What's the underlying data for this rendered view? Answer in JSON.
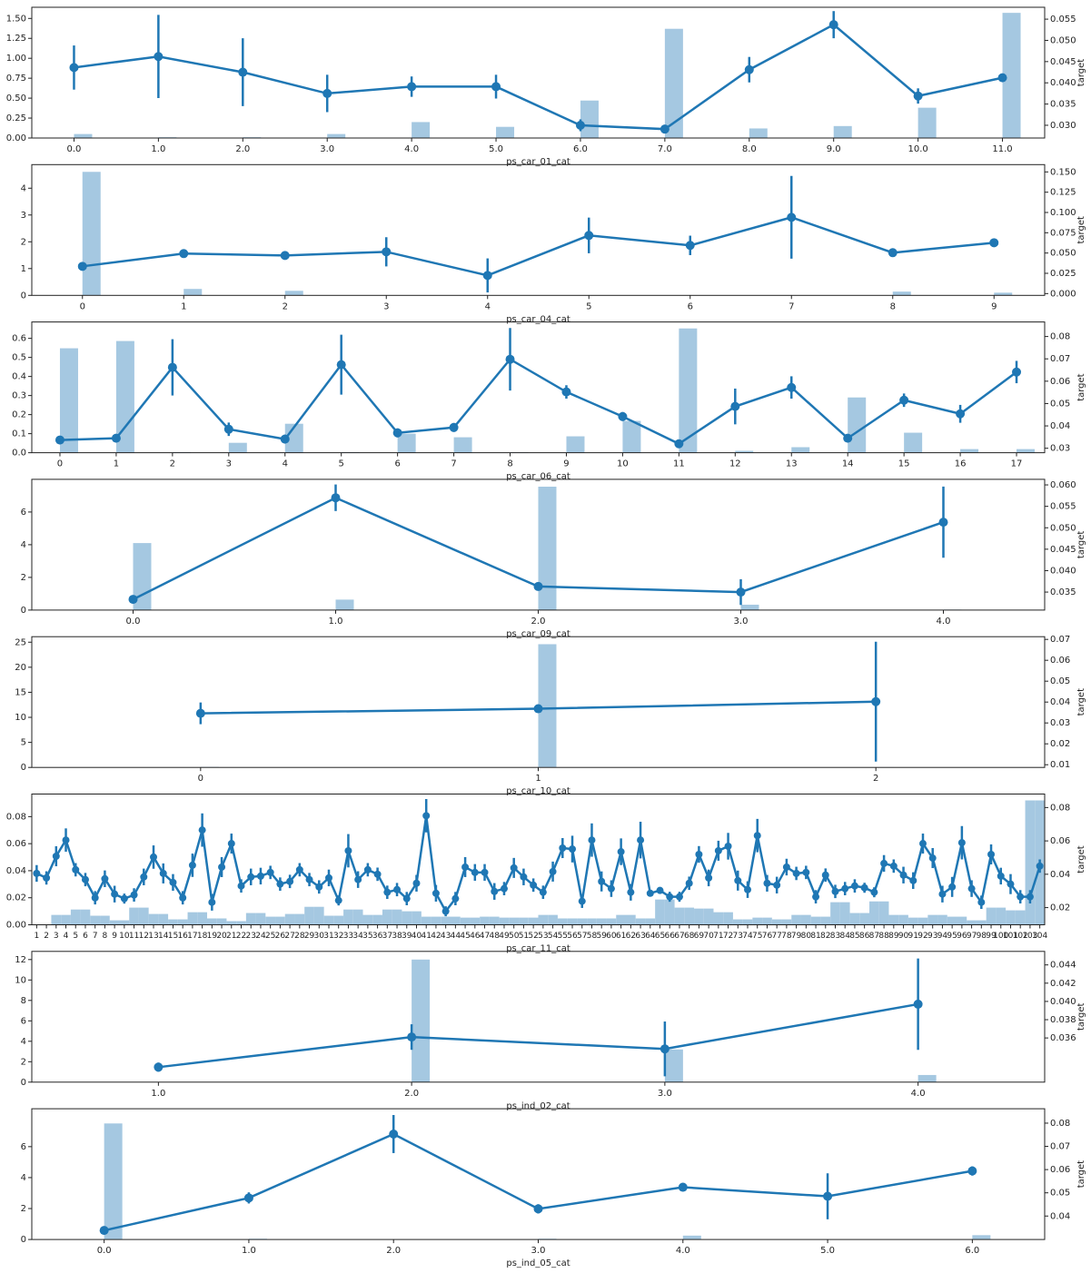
{
  "chart_data": [
    {
      "type": "combo",
      "x_label": "ps_car_01_cat",
      "y2_label": "target",
      "bar_color": "#a5c8e1",
      "point_color": "#1f77b4",
      "categories": [
        "0.0",
        "1.0",
        "2.0",
        "3.0",
        "4.0",
        "5.0",
        "6.0",
        "7.0",
        "8.0",
        "9.0",
        "10.0",
        "11.0"
      ],
      "bar_values": [
        0.05,
        0.01,
        0.01,
        0.05,
        0.2,
        0.14,
        0.47,
        1.37,
        0.12,
        0.15,
        0.38,
        1.57
      ],
      "point_values": [
        0.0436,
        0.0462,
        0.0425,
        0.0375,
        0.0391,
        0.0391,
        0.03,
        0.0291,
        0.0431,
        0.0537,
        0.0369,
        0.0412
      ],
      "point_errors": [
        0.0052,
        0.0098,
        0.008,
        0.0044,
        0.0024,
        0.0028,
        0.0014,
        0.0008,
        0.003,
        0.0032,
        0.0018,
        0.0005
      ],
      "ylim": [
        0,
        1.64
      ],
      "yticks": [
        {
          "value": 0,
          "label": "0.00"
        },
        0.25,
        {
          "value": 0.5,
          "label": "0.50"
        },
        0.75,
        {
          "value": 1,
          "label": "1.00"
        },
        1.25,
        {
          "value": 1.5,
          "label": "1.50"
        }
      ],
      "y2lim": [
        0.027,
        0.0578
      ],
      "y2ticks": [
        {
          "value": 0.03,
          "label": "0.030"
        },
        0.035,
        {
          "value": 0.04,
          "label": "0.040"
        },
        0.045,
        {
          "value": 0.05,
          "label": "0.050"
        },
        0.055
      ]
    },
    {
      "type": "combo",
      "x_label": "ps_car_04_cat",
      "y2_label": "target",
      "bar_color": "#a5c8e1",
      "point_color": "#1f77b4",
      "categories": [
        0,
        1,
        2,
        3,
        4,
        5,
        6,
        7,
        8,
        9
      ],
      "bar_values": [
        4.61,
        0.24,
        0.17,
        0,
        0,
        0,
        0,
        0,
        0.14,
        0.1
      ],
      "point_values": [
        0.0336,
        0.0493,
        0.047,
        0.0515,
        0.0224,
        0.0717,
        0.0594,
        0.094,
        0.0504,
        0.0627
      ],
      "point_errors": [
        0.002,
        0.002,
        0.002,
        0.018,
        0.021,
        0.022,
        0.012,
        0.051,
        0.002,
        0.003
      ],
      "ylim": [
        0,
        4.88
      ],
      "yticks": [
        0,
        1,
        2,
        3,
        4
      ],
      "y2lim": [
        -0.0022,
        0.159
      ],
      "y2ticks": [
        {
          "value": 0,
          "label": "0.000"
        },
        0.025,
        {
          "value": 0.05,
          "label": "0.050"
        },
        0.075,
        {
          "value": 0.1,
          "label": "0.100"
        },
        0.125,
        {
          "value": 0.15,
          "label": "0.150"
        }
      ]
    },
    {
      "type": "combo",
      "x_label": "ps_car_06_cat",
      "y2_label": "target",
      "bar_color": "#a5c8e1",
      "point_color": "#1f77b4",
      "categories": [
        0,
        1,
        2,
        3,
        4,
        5,
        6,
        7,
        8,
        9,
        10,
        11,
        12,
        13,
        14,
        15,
        16,
        17
      ],
      "bar_values": [
        0.548,
        0.586,
        0.003,
        0.052,
        0.152,
        0.003,
        0.1,
        0.081,
        0.002,
        0.086,
        0.167,
        0.652,
        0.01,
        0.029,
        0.29,
        0.105,
        0.019,
        0.019
      ],
      "point_values": [
        0.0337,
        0.0345,
        0.0662,
        0.0385,
        0.0341,
        0.0674,
        0.0369,
        0.0393,
        0.0698,
        0.0552,
        0.0442,
        0.032,
        0.0487,
        0.0572,
        0.0345,
        0.0515,
        0.0454,
        0.0641
      ],
      "point_errors": [
        0.0005,
        0.0005,
        0.0126,
        0.003,
        0.002,
        0.0134,
        0.002,
        0.002,
        0.014,
        0.003,
        0.002,
        0.0004,
        0.008,
        0.005,
        0.001,
        0.003,
        0.004,
        0.005
      ],
      "ylim": [
        0,
        0.686
      ],
      "yticks": [
        {
          "value": 0,
          "label": "0.0"
        },
        0.1,
        0.2,
        0.3,
        0.4,
        0.5,
        0.6
      ],
      "y2lim": [
        0.028,
        0.0865
      ],
      "y2ticks": [
        0.03,
        0.04,
        0.05,
        0.06,
        0.07,
        0.08
      ]
    },
    {
      "type": "combo",
      "x_label": "ps_car_09_cat",
      "y2_label": "target",
      "bar_color": "#a5c8e1",
      "point_color": "#1f77b4",
      "categories": [
        "0.0",
        "1.0",
        "2.0",
        "3.0",
        "4.0"
      ],
      "bar_values": [
        4.1,
        0.64,
        7.55,
        0.33,
        0.03
      ],
      "point_values": [
        0.0333,
        0.057,
        0.0363,
        0.035,
        0.0513
      ],
      "point_errors": [
        0.0004,
        0.0031,
        0.0005,
        0.003,
        0.0083
      ],
      "ylim": [
        0,
        8
      ],
      "yticks": [
        0,
        2,
        4,
        6
      ],
      "y2lim": [
        0.0308,
        0.0613
      ],
      "y2ticks": [
        0.035,
        {
          "value": 0.04,
          "label": "0.040"
        },
        0.045,
        {
          "value": 0.05,
          "label": "0.050"
        },
        0.055,
        {
          "value": 0.06,
          "label": "0.060"
        }
      ]
    },
    {
      "type": "combo",
      "x_label": "ps_car_10_cat",
      "y2_label": "target",
      "bar_color": "#a5c8e1",
      "point_color": "#1f77b4",
      "categories": [
        0,
        1,
        2
      ],
      "bar_values": [
        0.1,
        24.6,
        0.05
      ],
      "point_values": [
        0.0346,
        0.0368,
        0.0402
      ],
      "point_errors": [
        0.0052,
        0.0005,
        0.0287
      ],
      "ylim": [
        0,
        26.1
      ],
      "yticks": [
        0,
        5,
        10,
        15,
        20,
        25
      ],
      "y2lim": [
        0.0087,
        0.0713
      ],
      "y2ticks": [
        0.01,
        0.02,
        0.03,
        0.04,
        0.05,
        0.06,
        0.07
      ]
    },
    {
      "type": "combo",
      "x_label": "ps_car_11_cat",
      "y2_label": "target",
      "bar_color": "#a5c8e1",
      "point_color": "#1f77b4",
      "categories": [
        1,
        2,
        3,
        4,
        5,
        6,
        7,
        8,
        9,
        10,
        11,
        12,
        13,
        14,
        15,
        16,
        17,
        18,
        19,
        20,
        21,
        22,
        23,
        24,
        25,
        26,
        27,
        28,
        29,
        30,
        31,
        32,
        33,
        34,
        35,
        36,
        37,
        38,
        39,
        40,
        41,
        42,
        43,
        44,
        45,
        46,
        47,
        48,
        49,
        50,
        51,
        52,
        53,
        54,
        55,
        56,
        57,
        58,
        59,
        60,
        61,
        62,
        63,
        64,
        65,
        66,
        67,
        68,
        69,
        70,
        71,
        72,
        73,
        74,
        75,
        76,
        77,
        78,
        79,
        80,
        81,
        82,
        83,
        84,
        85,
        86,
        87,
        88,
        89,
        90,
        91,
        92,
        93,
        94,
        95,
        96,
        97,
        98,
        99,
        100,
        101,
        102,
        103,
        104
      ],
      "bar_values": [
        0,
        0,
        0.0073,
        0.0073,
        0.0113,
        0.0113,
        0.0067,
        0.0067,
        0.0033,
        0.0033,
        0.0127,
        0.0127,
        0.008,
        0.008,
        0.004,
        0.004,
        0.0093,
        0.0093,
        0.0047,
        0.0047,
        0.0027,
        0.0027,
        0.0087,
        0.0087,
        0.006,
        0.006,
        0.008,
        0.008,
        0.0133,
        0.0133,
        0.0067,
        0.0067,
        0.0113,
        0.0113,
        0.0073,
        0.0073,
        0.0113,
        0.0113,
        0.01,
        0.01,
        0.006,
        0.006,
        0.006,
        0.006,
        0.0053,
        0.0053,
        0.006,
        0.006,
        0.0053,
        0.0053,
        0.0053,
        0.0053,
        0.0073,
        0.0073,
        0.0047,
        0.0047,
        0.0047,
        0.0047,
        0.0047,
        0.0047,
        0.0073,
        0.0073,
        0.0047,
        0.0047,
        0.0187,
        0.0187,
        0.0127,
        0.0127,
        0.012,
        0.012,
        0.0093,
        0.0093,
        0.004,
        0.004,
        0.0053,
        0.0053,
        0.004,
        0.004,
        0.0073,
        0.0073,
        0.006,
        0.006,
        0.0167,
        0.0167,
        0.0087,
        0.0087,
        0.0173,
        0.0173,
        0.0073,
        0.0073,
        0.0053,
        0.0053,
        0.0073,
        0.0073,
        0.006,
        0.006,
        0.0033,
        0.0033,
        0.0127,
        0.0127,
        0.0107,
        0.0107,
        0.092,
        0.092
      ],
      "point_values": [
        0.0405,
        0.0378,
        0.0508,
        0.0605,
        0.0427,
        0.0368,
        0.0259,
        0.0373,
        0.0281,
        0.0254,
        0.0276,
        0.0384,
        0.0503,
        0.0405,
        0.0351,
        0.0259,
        0.0454,
        0.0665,
        0.0232,
        0.0443,
        0.0584,
        0.033,
        0.0384,
        0.0389,
        0.0411,
        0.0341,
        0.0357,
        0.0427,
        0.0368,
        0.0324,
        0.0378,
        0.0243,
        0.0541,
        0.0368,
        0.0427,
        0.04,
        0.0292,
        0.0308,
        0.0254,
        0.0346,
        0.0751,
        0.0286,
        0.0178,
        0.0254,
        0.0443,
        0.0411,
        0.0411,
        0.0297,
        0.0314,
        0.0438,
        0.0384,
        0.0335,
        0.0292,
        0.0416,
        0.0557,
        0.0551,
        0.0238,
        0.0605,
        0.0357,
        0.0314,
        0.0535,
        0.0292,
        0.0605,
        0.0286,
        0.0303,
        0.0265,
        0.0265,
        0.0346,
        0.0519,
        0.0378,
        0.0541,
        0.0568,
        0.0362,
        0.0308,
        0.0632,
        0.0346,
        0.0335,
        0.0443,
        0.0405,
        0.0411,
        0.0265,
        0.0395,
        0.0297,
        0.0314,
        0.033,
        0.0319,
        0.0292,
        0.0465,
        0.0449,
        0.0395,
        0.0362,
        0.0584,
        0.0497,
        0.0281,
        0.0324,
        0.0589,
        0.0314,
        0.0232,
        0.0519,
        0.0389,
        0.0341,
        0.0265,
        0.0265,
        0.0449
      ],
      "point_errors": [
        0.005,
        0.004,
        0.006,
        0.007,
        0.004,
        0.004,
        0.004,
        0.005,
        0.005,
        0.003,
        0.004,
        0.005,
        0.007,
        0.006,
        0.005,
        0.004,
        0.007,
        0.01,
        0.005,
        0.006,
        0.006,
        0.004,
        0.005,
        0.005,
        0.004,
        0.004,
        0.004,
        0.004,
        0.004,
        0.004,
        0.005,
        0.003,
        0.01,
        0.005,
        0.004,
        0.004,
        0.004,
        0.004,
        0.004,
        0.005,
        0.01,
        0.005,
        0.003,
        0.004,
        0.006,
        0.005,
        0.005,
        0.005,
        0.004,
        0.006,
        0.005,
        0.004,
        0.004,
        0.006,
        0.006,
        0.008,
        0.004,
        0.01,
        0.006,
        0.005,
        0.008,
        0.005,
        0.011,
        0.002,
        0.002,
        0.003,
        0.003,
        0.004,
        0.005,
        0.005,
        0.006,
        0.008,
        0.006,
        0.005,
        0.01,
        0.005,
        0.005,
        0.005,
        0.004,
        0.004,
        0.004,
        0.004,
        0.004,
        0.004,
        0.004,
        0.003,
        0.003,
        0.005,
        0.004,
        0.005,
        0.005,
        0.006,
        0.006,
        0.005,
        0.006,
        0.01,
        0.005,
        0.004,
        0.006,
        0.005,
        0.006,
        0.004,
        0.004,
        0.004
      ],
      "ylim": [
        0,
        0.0967
      ],
      "yticks": [
        {
          "value": 0,
          "label": "0.00"
        },
        {
          "value": 0.02,
          "label": "0.02"
        },
        {
          "value": 0.04,
          "label": "0.04"
        },
        {
          "value": 0.06,
          "label": "0.06"
        },
        {
          "value": 0.08,
          "label": "0.08"
        }
      ],
      "y2lim": [
        0.0097,
        0.0881
      ],
      "y2ticks": [
        0.02,
        0.04,
        0.06,
        0.08
      ]
    },
    {
      "type": "combo",
      "x_label": "ps_ind_02_cat",
      "y2_label": "target",
      "bar_color": "#a5c8e1",
      "point_color": "#1f77b4",
      "categories": [
        "1.0",
        "2.0",
        "3.0",
        "4.0"
      ],
      "bar_values": [
        0,
        12,
        3.2,
        0.7
      ],
      "point_values": [
        0.0328,
        0.0361,
        0.0348,
        0.0397
      ],
      "point_errors": [
        0.0005,
        0.0014,
        0.003,
        0.005
      ],
      "ylim": [
        0,
        12.8
      ],
      "yticks": [
        0,
        2,
        4,
        6,
        8,
        10,
        12
      ],
      "y2lim": [
        0.03116,
        0.04548
      ],
      "y2ticks": [
        0.036,
        0.038,
        {
          "value": 0.04,
          "label": "0.040"
        },
        0.042,
        0.044
      ]
    },
    {
      "type": "combo",
      "x_label": "ps_ind_05_cat",
      "y2_label": "target",
      "bar_color": "#a5c8e1",
      "point_color": "#1f77b4",
      "categories": [
        "0.0",
        "1.0",
        "2.0",
        "3.0",
        "4.0",
        "5.0",
        "6.0"
      ],
      "bar_values": [
        7.5,
        0.05,
        0,
        0.05,
        0.25,
        0,
        0.28
      ],
      "point_values": [
        0.0338,
        0.0478,
        0.0753,
        0.0431,
        0.0524,
        0.0485,
        0.0594
      ],
      "point_errors": [
        0.0005,
        0.0024,
        0.0082,
        0.002,
        0.0018,
        0.0099,
        0.002
      ],
      "ylim": [
        0,
        8.45
      ],
      "yticks": [
        0,
        2,
        4,
        6
      ],
      "y2lim": [
        0.0299,
        0.0862
      ],
      "y2ticks": [
        0.04,
        0.05,
        0.06,
        0.07,
        0.08
      ]
    }
  ]
}
